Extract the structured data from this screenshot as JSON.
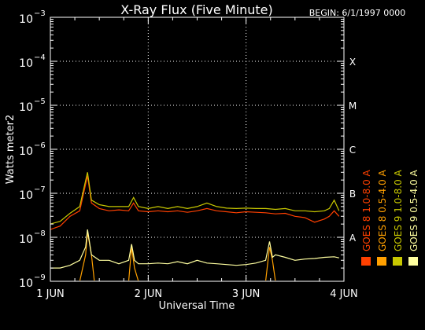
{
  "chart_data": {
    "type": "line",
    "title": "X-Ray Flux (Five Minute)",
    "begin_label": "BEGIN: 6/1/1997 0000",
    "ylabel": "Watts meter2",
    "xlabel": "Universal Time",
    "yscale": "log",
    "ylim": [
      1e-09,
      0.001
    ],
    "xlim": [
      0,
      3
    ],
    "y_ticks": [
      {
        "base": "10",
        "exp": "−9"
      },
      {
        "base": "10",
        "exp": "−8"
      },
      {
        "base": "10",
        "exp": "−7"
      },
      {
        "base": "10",
        "exp": "−6"
      },
      {
        "base": "10",
        "exp": "−5"
      },
      {
        "base": "10",
        "exp": "−4"
      },
      {
        "base": "10",
        "exp": "−3"
      }
    ],
    "x_ticks": [
      "1 JUN",
      "2 JUN",
      "3 JUN",
      "4 JUN"
    ],
    "class_labels": [
      "A",
      "B",
      "C",
      "M",
      "X"
    ],
    "grid": true,
    "legend_position": "right",
    "colors": {
      "goes8_long": "#ff4000",
      "goes8_short": "#ffa000",
      "goes9_long": "#c8c800",
      "goes9_short": "#ffffa0"
    },
    "series": [
      {
        "name": "GOES 8 1.0-8.0 A",
        "color": "#ff4000",
        "x": [
          0,
          0.1,
          0.2,
          0.3,
          0.38,
          0.42,
          0.5,
          0.6,
          0.7,
          0.8,
          0.85,
          0.9,
          1.0,
          1.1,
          1.2,
          1.3,
          1.4,
          1.5,
          1.6,
          1.7,
          1.8,
          1.9,
          2.0,
          2.1,
          2.2,
          2.3,
          2.4,
          2.5,
          2.6,
          2.7,
          2.8,
          2.85,
          2.9,
          2.95
        ],
        "y": [
          1.5e-08,
          1.8e-08,
          3e-08,
          4e-08,
          2.5e-07,
          6e-08,
          4.5e-08,
          4e-08,
          4.2e-08,
          4e-08,
          6e-08,
          4e-08,
          3.8e-08,
          4e-08,
          3.8e-08,
          4e-08,
          3.7e-08,
          4e-08,
          4.5e-08,
          4e-08,
          3.8e-08,
          3.6e-08,
          3.8e-08,
          3.7e-08,
          3.6e-08,
          3.4e-08,
          3.5e-08,
          3e-08,
          2.8e-08,
          2.2e-08,
          2.6e-08,
          3e-08,
          4e-08,
          3e-08
        ]
      },
      {
        "name": "GOES 8 0.5-4.0 A",
        "color": "#ffa000",
        "x": [
          0,
          0.3,
          0.36,
          0.38,
          0.42,
          0.45,
          0.8,
          0.83,
          0.86,
          0.9,
          2.2,
          2.24,
          2.27,
          2.3,
          2.9,
          2.95
        ],
        "y": [
          1e-09,
          1e-09,
          4e-09,
          1.3e-08,
          4e-09,
          1e-09,
          1e-09,
          6e-09,
          2e-09,
          1e-09,
          1e-09,
          6e-09,
          3e-09,
          1e-09,
          1e-09,
          1e-09
        ]
      },
      {
        "name": "GOES 9 1.0-8.0 A",
        "color": "#c8c800",
        "x": [
          0,
          0.1,
          0.2,
          0.3,
          0.38,
          0.42,
          0.5,
          0.6,
          0.7,
          0.8,
          0.85,
          0.9,
          1.0,
          1.1,
          1.2,
          1.3,
          1.4,
          1.5,
          1.6,
          1.7,
          1.8,
          1.9,
          2.0,
          2.1,
          2.2,
          2.3,
          2.4,
          2.5,
          2.6,
          2.7,
          2.8,
          2.85,
          2.9,
          2.95
        ],
        "y": [
          2e-08,
          2.3e-08,
          3.5e-08,
          5e-08,
          3e-07,
          7e-08,
          5.5e-08,
          5e-08,
          5e-08,
          5e-08,
          8e-08,
          5e-08,
          4.5e-08,
          5e-08,
          4.5e-08,
          5e-08,
          4.5e-08,
          5e-08,
          6e-08,
          5e-08,
          4.6e-08,
          4.5e-08,
          4.6e-08,
          4.5e-08,
          4.5e-08,
          4.3e-08,
          4.5e-08,
          4e-08,
          4e-08,
          3.8e-08,
          4e-08,
          4.5e-08,
          7e-08,
          4e-08
        ]
      },
      {
        "name": "GOES 9 0.5-4.0 A",
        "color": "#ffffa0",
        "x": [
          0,
          0.1,
          0.2,
          0.3,
          0.36,
          0.38,
          0.42,
          0.5,
          0.6,
          0.7,
          0.8,
          0.83,
          0.86,
          0.9,
          1.0,
          1.1,
          1.2,
          1.3,
          1.4,
          1.5,
          1.6,
          1.7,
          1.8,
          1.9,
          2.0,
          2.1,
          2.2,
          2.24,
          2.27,
          2.3,
          2.4,
          2.5,
          2.6,
          2.7,
          2.8,
          2.9,
          2.95
        ],
        "y": [
          2e-09,
          2e-09,
          2.3e-09,
          3e-09,
          6e-09,
          1.5e-08,
          4e-09,
          3e-09,
          3e-09,
          2.5e-09,
          3e-09,
          7e-09,
          3e-09,
          2.5e-09,
          2.5e-09,
          2.6e-09,
          2.5e-09,
          2.8e-09,
          2.5e-09,
          3e-09,
          2.6e-09,
          2.5e-09,
          2.4e-09,
          2.3e-09,
          2.4e-09,
          2.6e-09,
          3e-09,
          8e-09,
          3.5e-09,
          4e-09,
          3.5e-09,
          3e-09,
          3.2e-09,
          3.3e-09,
          3.5e-09,
          3.6e-09,
          3.4e-09
        ]
      }
    ],
    "legend": [
      {
        "label": "GOES 8 1.0-8.0 A",
        "color": "#ff4000"
      },
      {
        "label": "GOES 8 0.5-4.0 A",
        "color": "#ffa000"
      },
      {
        "label": "GOES 9 1.0-8.0 A",
        "color": "#c8c800"
      },
      {
        "label": "GOES 9 0.5-4.0 A",
        "color": "#ffffa0"
      }
    ]
  }
}
